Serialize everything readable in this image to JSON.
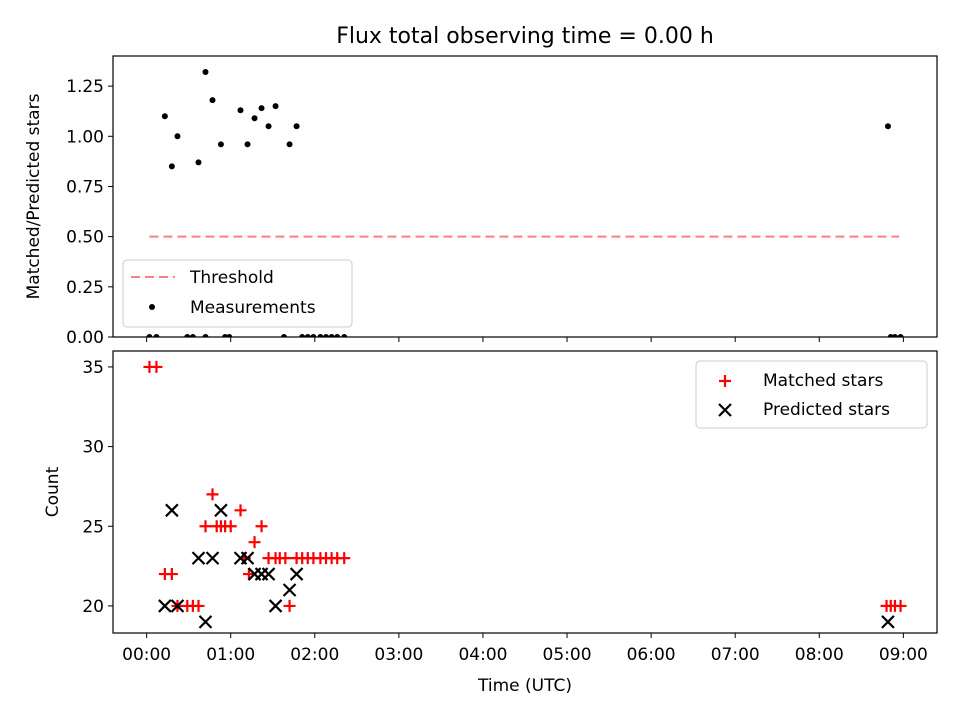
{
  "chart_data": [
    {
      "type": "scatter",
      "title": "Flux total observing time = 0.00 h",
      "xlabel": "",
      "ylabel": "Matched/Predicted stars",
      "xlim": [
        "23:36",
        "09:24"
      ],
      "ylim": [
        0,
        1.4
      ],
      "yticks": [
        "0.00",
        "0.25",
        "0.50",
        "0.75",
        "1.00",
        "1.25"
      ],
      "legend_position": "lower-left",
      "legend": [
        "Threshold",
        "Measurements"
      ],
      "series": [
        {
          "name": "Threshold",
          "style": "dashed-line",
          "color": "#ff7f7f",
          "points": [
            [
              "00:02",
              0.5
            ],
            [
              "08:57",
              0.5
            ]
          ]
        },
        {
          "name": "Measurements",
          "style": "dot",
          "color": "#000000",
          "points": [
            [
              "00:02",
              0.0
            ],
            [
              "00:07",
              0.0
            ],
            [
              "00:13",
              1.1
            ],
            [
              "00:18",
              0.85
            ],
            [
              "00:22",
              1.0
            ],
            [
              "00:29",
              0.0
            ],
            [
              "00:33",
              0.0
            ],
            [
              "00:37",
              0.87
            ],
            [
              "00:42",
              1.32
            ],
            [
              "00:42",
              0.0
            ],
            [
              "00:47",
              1.18
            ],
            [
              "00:53",
              0.96
            ],
            [
              "00:56",
              0.0
            ],
            [
              "00:59",
              0.0
            ],
            [
              "01:07",
              1.13
            ],
            [
              "01:12",
              0.96
            ],
            [
              "01:17",
              1.09
            ],
            [
              "01:22",
              1.14
            ],
            [
              "01:27",
              1.05
            ],
            [
              "01:32",
              1.15
            ],
            [
              "01:38",
              0.0
            ],
            [
              "01:42",
              0.96
            ],
            [
              "01:47",
              1.05
            ],
            [
              "01:51",
              0.0
            ],
            [
              "01:55",
              0.0
            ],
            [
              "01:59",
              0.0
            ],
            [
              "02:04",
              0.0
            ],
            [
              "02:08",
              0.0
            ],
            [
              "02:12",
              0.0
            ],
            [
              "02:16",
              0.0
            ],
            [
              "02:21",
              0.0
            ],
            [
              "08:49",
              1.05
            ],
            [
              "08:51",
              0.0
            ],
            [
              "08:54",
              0.0
            ],
            [
              "08:58",
              0.0
            ]
          ]
        }
      ]
    },
    {
      "type": "scatter",
      "title": "",
      "xlabel": "Time (UTC)",
      "ylabel": "Count",
      "xlim": [
        "23:36",
        "09:24"
      ],
      "ylim": [
        18.3,
        36
      ],
      "xticks": [
        "00:00",
        "01:00",
        "02:00",
        "03:00",
        "04:00",
        "05:00",
        "06:00",
        "07:00",
        "08:00",
        "09:00"
      ],
      "yticks": [
        "20",
        "25",
        "30",
        "35"
      ],
      "legend_position": "upper-right",
      "legend": [
        "Matched stars",
        "Predicted stars"
      ],
      "series": [
        {
          "name": "Matched stars",
          "marker": "plus",
          "color": "#ff0000",
          "points": [
            [
              "00:02",
              35
            ],
            [
              "00:07",
              35
            ],
            [
              "00:13",
              22
            ],
            [
              "00:18",
              22
            ],
            [
              "00:22",
              20
            ],
            [
              "00:29",
              20
            ],
            [
              "00:33",
              20
            ],
            [
              "00:37",
              20
            ],
            [
              "00:42",
              25
            ],
            [
              "00:47",
              27
            ],
            [
              "00:50",
              25
            ],
            [
              "00:53",
              25
            ],
            [
              "00:56",
              25
            ],
            [
              "01:00",
              25
            ],
            [
              "01:07",
              26
            ],
            [
              "01:10",
              23
            ],
            [
              "01:13",
              22
            ],
            [
              "01:17",
              24
            ],
            [
              "01:22",
              25
            ],
            [
              "01:27",
              23
            ],
            [
              "01:32",
              23
            ],
            [
              "01:35",
              23
            ],
            [
              "01:39",
              23
            ],
            [
              "01:42",
              20
            ],
            [
              "01:47",
              23
            ],
            [
              "01:51",
              23
            ],
            [
              "01:55",
              23
            ],
            [
              "01:59",
              23
            ],
            [
              "02:04",
              23
            ],
            [
              "02:08",
              23
            ],
            [
              "02:12",
              23
            ],
            [
              "02:16",
              23
            ],
            [
              "02:21",
              23
            ],
            [
              "08:48",
              20
            ],
            [
              "08:51",
              20
            ],
            [
              "08:54",
              20
            ],
            [
              "08:58",
              20
            ]
          ]
        },
        {
          "name": "Predicted stars",
          "marker": "x",
          "color": "#000000",
          "points": [
            [
              "00:13",
              20
            ],
            [
              "00:18",
              26
            ],
            [
              "00:22",
              20
            ],
            [
              "00:37",
              23
            ],
            [
              "00:42",
              19
            ],
            [
              "00:47",
              23
            ],
            [
              "00:53",
              26
            ],
            [
              "01:07",
              23
            ],
            [
              "01:12",
              23
            ],
            [
              "01:17",
              22
            ],
            [
              "01:22",
              22
            ],
            [
              "01:27",
              22
            ],
            [
              "01:32",
              20
            ],
            [
              "01:42",
              21
            ],
            [
              "01:47",
              22
            ],
            [
              "08:49",
              19
            ]
          ]
        }
      ]
    }
  ]
}
